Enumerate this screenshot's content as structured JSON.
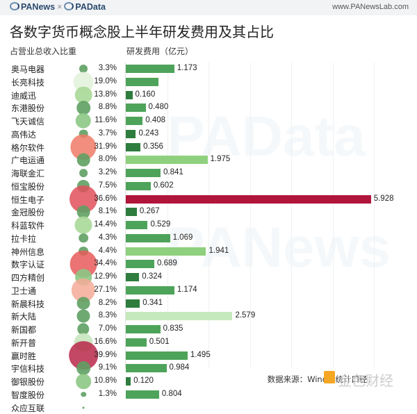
{
  "header": {
    "logo_left": "PANews",
    "logo_sep": "×",
    "logo_right": "PAData",
    "website": "www.PANewsLab.com"
  },
  "title": "各数字货币概念股上半年研发费用及其占比",
  "left_header": "占营业总收入比重",
  "right_header": "研发费用（亿元）",
  "footer": "数据来源：Wind；统计口径：",
  "watermark_text": "PANews",
  "watermark_text2": "PAData",
  "footer_watermark": "金色财经",
  "colors": {
    "bar_dark": "#2e7d3e",
    "bar_mid": "#4ea35a",
    "bar_light": "#8fd07e",
    "bar_pale": "#c6e8bd",
    "bar_highlight": "#b0153a",
    "bubble_green": "#6aaa6a",
    "bubble_red": "#e85a5a"
  },
  "chart_data": {
    "type": "bar",
    "title": "各数字货币概念股上半年研发费用及其占比",
    "xlabel": "研发费用（亿元）",
    "ylabel": "",
    "grid": true,
    "categories": [
      "奥马电器",
      "长亮科技",
      "迪威迅",
      "东港股份",
      "飞天诚信",
      "高伟达",
      "格尔软件",
      "广电运通",
      "海联金汇",
      "恒宝股份",
      "恒生电子",
      "金冠股份",
      "科蓝软件",
      "拉卡拉",
      "神州信息",
      "数字认证",
      "四方精创",
      "卫士通",
      "新晨科技",
      "新大陆",
      "新国都",
      "新开普",
      "赢时胜",
      "宇信科技",
      "御银股份",
      "智度股份",
      "众应互联"
    ],
    "series": [
      {
        "name": "研发费用（亿元）",
        "values": [
          1.173,
          0.79,
          0.16,
          0.48,
          0.408,
          0.243,
          0.356,
          1.975,
          0.841,
          0.602,
          5.928,
          0.267,
          0.529,
          1.069,
          1.941,
          0.689,
          0.324,
          1.174,
          0.341,
          2.579,
          0.835,
          0.501,
          1.495,
          0.984,
          0.12,
          0.804,
          0.0
        ]
      },
      {
        "name": "占营业总收入比重",
        "values": [
          3.3,
          19.0,
          13.8,
          8.8,
          11.6,
          3.7,
          31.9,
          8.0,
          3.2,
          7.5,
          36.6,
          8.1,
          14.4,
          4.3,
          4.4,
          34.4,
          12.9,
          27.1,
          8.2,
          8.3,
          7.0,
          16.6,
          39.9,
          9.1,
          10.8,
          1.3,
          0.1
        ]
      }
    ],
    "value_labels": [
      "1.173",
      "",
      "0.160",
      "0.480",
      "0.408",
      "0.243",
      "0.356",
      "1.975",
      "0.841",
      "0.602",
      "5.928",
      "0.267",
      "0.529",
      "1.069",
      "1.941",
      "0.689",
      "0.324",
      "1.174",
      "0.341",
      "2.579",
      "0.835",
      "0.501",
      "1.495",
      "0.984",
      "0.120",
      "0.804",
      ""
    ],
    "pct_labels": [
      "3.3%",
      "19.0%",
      "13.8%",
      "8.8%",
      "11.6%",
      "3.7%",
      "31.9%",
      "8.0%",
      "3.2%",
      "7.5%",
      "36.6%",
      "8.1%",
      "14.4%",
      "4.3%",
      "4.4%",
      "34.4%",
      "12.9%",
      "27.1%",
      "8.2%",
      "8.3%",
      "7.0%",
      "16.6%",
      "39.9%",
      "9.1%",
      "10.8%",
      "1.3%",
      ""
    ],
    "xlim": [
      0,
      7
    ]
  }
}
